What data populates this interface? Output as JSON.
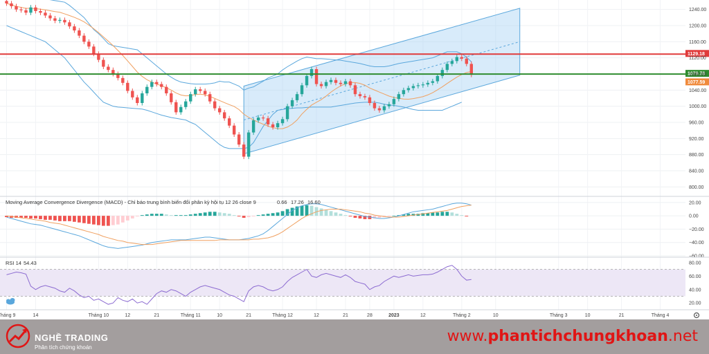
{
  "chart_data": [
    {
      "type": "candlestick",
      "y_ticks": [
        "1240.00",
        "1200.00",
        "1160.00",
        "1120.00",
        "1080.00",
        "1040.00",
        "1000.00",
        "960.00",
        "920.00",
        "880.00",
        "840.00",
        "800.00"
      ],
      "ylim": [
        780,
        1260
      ],
      "x_ticks": [
        {
          "label": "Tháng 9",
          "i": 0
        },
        {
          "label": "14",
          "i": 6
        },
        {
          "label": "Tháng 10",
          "i": 19
        },
        {
          "label": "12",
          "i": 25
        },
        {
          "label": "21",
          "i": 31
        },
        {
          "label": "Tháng 11",
          "i": 38
        },
        {
          "label": "10",
          "i": 44
        },
        {
          "label": "21",
          "i": 50
        },
        {
          "label": "Tháng 12",
          "i": 57
        },
        {
          "label": "12",
          "i": 64
        },
        {
          "label": "21",
          "i": 70
        },
        {
          "label": "28",
          "i": 75
        },
        {
          "label": "2023",
          "i": 80
        },
        {
          "label": "12",
          "i": 86
        },
        {
          "label": "Tháng 2",
          "i": 94
        },
        {
          "label": "10",
          "i": 101
        },
        {
          "label": "Tháng 3",
          "i": 114
        },
        {
          "label": "10",
          "i": 120
        },
        {
          "label": "21",
          "i": 127
        },
        {
          "label": "Tháng 4",
          "i": 135
        }
      ],
      "price_lines": [
        {
          "value": 1129.18,
          "label": "1129.18",
          "color": "#e03a3a"
        },
        {
          "value": 1079.78,
          "label": "1079.78",
          "color": "#2e8b2e"
        },
        {
          "value": 1077.59,
          "label": "1077.59",
          "color": "#f08a3c"
        }
      ],
      "close": [
        1255,
        1248,
        1240,
        1238,
        1232,
        1245,
        1236,
        1232,
        1225,
        1218,
        1212,
        1214,
        1208,
        1198,
        1188,
        1175,
        1160,
        1148,
        1130,
        1115,
        1098,
        1090,
        1080,
        1070,
        1058,
        1038,
        1022,
        1008,
        1032,
        1048,
        1060,
        1055,
        1048,
        1032,
        1010,
        985,
        998,
        1012,
        1030,
        1042,
        1038,
        1030,
        1012,
        995,
        985,
        970,
        952,
        930,
        905,
        875,
        935,
        965,
        972,
        970,
        955,
        948,
        958,
        968,
        1000,
        1015,
        1030,
        1052,
        1075,
        1092,
        1055,
        1050,
        1060,
        1065,
        1058,
        1055,
        1062,
        1052,
        1030,
        1025,
        1022,
        1008,
        995,
        990,
        1000,
        1005,
        1018,
        1030,
        1040,
        1045,
        1050,
        1052,
        1054,
        1058,
        1062,
        1075,
        1090,
        1105,
        1112,
        1122,
        1118,
        1105,
        1078
      ],
      "upper_band": [
        1300,
        1295,
        1290,
        1285,
        1280,
        1275,
        1270,
        1268,
        1266,
        1264,
        1262,
        1260,
        1258,
        1250,
        1240,
        1230,
        1220,
        1205,
        1190,
        1180,
        1168,
        1155,
        1150,
        1148,
        1146,
        1144,
        1142,
        1140,
        1130,
        1120,
        1110,
        1100,
        1090,
        1080,
        1072,
        1065,
        1060,
        1058,
        1056,
        1055,
        1055,
        1055,
        1056,
        1058,
        1062,
        1060,
        1060,
        1055,
        1050,
        1040,
        1045,
        1048,
        1055,
        1062,
        1070,
        1075,
        1080,
        1090,
        1098,
        1105,
        1112,
        1118,
        1122,
        1120,
        1118,
        1118,
        1117,
        1116,
        1115,
        1114,
        1112,
        1110,
        1108,
        1106,
        1103,
        1100,
        1098,
        1098,
        1098,
        1100,
        1103,
        1106,
        1108,
        1110,
        1112,
        1114,
        1116,
        1118,
        1120,
        1125,
        1130,
        1135,
        1135,
        1135,
        1130,
        1122,
        1110
      ],
      "lower_band": [
        1200,
        1195,
        1190,
        1185,
        1180,
        1175,
        1170,
        1165,
        1160,
        1150,
        1140,
        1130,
        1120,
        1105,
        1090,
        1075,
        1060,
        1048,
        1035,
        1022,
        1010,
        1005,
        1000,
        998,
        997,
        996,
        995,
        994,
        993,
        990,
        986,
        982,
        978,
        975,
        972,
        970,
        968,
        966,
        960,
        955,
        945,
        935,
        925,
        915,
        905,
        898,
        895,
        895,
        895,
        895,
        898,
        910,
        930,
        950,
        965,
        980,
        990,
        992,
        994,
        995,
        996,
        996,
        997,
        998,
        998,
        998,
        998,
        998,
        1000,
        1002,
        1004,
        1006,
        1008,
        1009,
        1010,
        1010,
        1010,
        1008,
        1005,
        1003,
        1002,
        1000,
        998,
        995,
        992,
        990,
        990,
        990,
        990,
        990,
        990,
        995,
        1000,
        1005,
        1010
      ]
    },
    {
      "type": "macd",
      "y_ticks": [
        "20.00",
        "0.00",
        "−20.00",
        "−40.00",
        "−60.00"
      ],
      "ylim": [
        -60,
        25
      ],
      "histogram": [
        -2,
        -3,
        -3,
        -3,
        -3,
        -4,
        -4,
        -5,
        -6,
        -6,
        -7,
        -8,
        -8,
        -8,
        -9,
        -10,
        -11,
        -12,
        -13,
        -14,
        -15,
        -15,
        -14,
        -13,
        -10,
        -7,
        -4,
        -1,
        1,
        2,
        3,
        3,
        3,
        2,
        1,
        1,
        1,
        1,
        2,
        3,
        4,
        5,
        6,
        6,
        5,
        4,
        3,
        1,
        -1,
        -3,
        -2,
        -1,
        1,
        2,
        3,
        4,
        5,
        7,
        10,
        12,
        14,
        15,
        16,
        15,
        13,
        11,
        9,
        7,
        5,
        3,
        1,
        -1,
        -3,
        -4,
        -5,
        -5,
        -4,
        -3,
        -2,
        -1,
        0,
        1,
        2,
        3,
        3,
        3,
        4,
        4,
        5,
        5,
        6,
        6,
        5,
        3,
        1,
        -1
      ],
      "macd_line": [
        -2,
        -4,
        -6,
        -8,
        -10,
        -12,
        -13,
        -14,
        -16,
        -18,
        -20,
        -22,
        -24,
        -26,
        -28,
        -30,
        -33,
        -36,
        -39,
        -42,
        -45,
        -47,
        -48,
        -49,
        -48,
        -47,
        -46,
        -45,
        -44,
        -42,
        -40,
        -39,
        -38,
        -37,
        -36,
        -36,
        -36,
        -36,
        -35,
        -34,
        -33,
        -32,
        -32,
        -33,
        -34,
        -35,
        -36,
        -36,
        -36,
        -35,
        -34,
        -32,
        -30,
        -27,
        -22,
        -16,
        -10,
        -4,
        2,
        8,
        12,
        15,
        17,
        18,
        18,
        17,
        15,
        13,
        11,
        9,
        7,
        5,
        3,
        1,
        -1,
        -2,
        -3,
        -4,
        -4,
        -3,
        -2,
        0,
        2,
        4,
        6,
        7,
        8,
        9,
        10,
        12,
        14,
        16,
        18,
        19,
        19,
        18,
        16
      ],
      "signal_line": [
        0,
        -1,
        -2,
        -3,
        -4,
        -5,
        -6,
        -7,
        -8,
        -10,
        -11,
        -12,
        -14,
        -16,
        -18,
        -20,
        -22,
        -24,
        -26,
        -28,
        -31,
        -33,
        -35,
        -37,
        -38,
        -40,
        -41,
        -42,
        -43,
        -43,
        -43,
        -42,
        -41,
        -40,
        -39,
        -38,
        -37,
        -37,
        -37,
        -37,
        -37,
        -37,
        -37,
        -37,
        -36,
        -36,
        -36,
        -36,
        -36,
        -36,
        -36,
        -35,
        -35,
        -34,
        -33,
        -31,
        -28,
        -24,
        -19,
        -14,
        -9,
        -4,
        0,
        3,
        6,
        8,
        9,
        10,
        10,
        10,
        9,
        8,
        7,
        6,
        4,
        3,
        1,
        0,
        -1,
        -2,
        -2,
        -2,
        -1,
        0,
        1,
        2,
        3,
        4,
        5,
        6,
        7,
        8,
        10,
        12,
        14,
        15,
        16
      ],
      "label_values": [
        "0.66",
        "17.26",
        "16.60"
      ]
    },
    {
      "type": "rsi",
      "y_ticks": [
        "80.00",
        "60.00",
        "40.00",
        "20.00"
      ],
      "ylim": [
        12,
        84
      ],
      "overbought": 70,
      "oversold": 30,
      "values": [
        62,
        64,
        66,
        65,
        63,
        45,
        40,
        44,
        46,
        44,
        42,
        38,
        36,
        42,
        38,
        32,
        28,
        30,
        24,
        26,
        22,
        18,
        20,
        28,
        24,
        22,
        26,
        20,
        22,
        18,
        26,
        34,
        38,
        36,
        40,
        38,
        34,
        30,
        36,
        40,
        44,
        46,
        44,
        42,
        40,
        36,
        32,
        30,
        26,
        22,
        38,
        44,
        46,
        44,
        40,
        38,
        40,
        44,
        52,
        58,
        62,
        66,
        70,
        60,
        58,
        62,
        64,
        62,
        60,
        58,
        62,
        58,
        52,
        50,
        48,
        40,
        44,
        46,
        52,
        56,
        60,
        58,
        60,
        62,
        60,
        61,
        62,
        62,
        63,
        66,
        70,
        74,
        76,
        70,
        60,
        54,
        55
      ],
      "label_value": "54.43"
    }
  ],
  "macd_label": "Moving Average Convergence Divergence (MACD) - Chỉ báo trung bình biến đổi phân kỳ hội tụ 12 26 close 9",
  "rsi_label": "RSI 14",
  "footer": {
    "brand": "NGHỀ TRADING",
    "tagline": "Phân tích chứng khoán",
    "url_prefix": "www.",
    "url_main": "phantichchungkhoan",
    "url_suffix": ".net"
  },
  "colors": {
    "up": "#26a69a",
    "down": "#ef5350",
    "band": "#5aa7dc",
    "ma": "#f0a060",
    "channel": "#a9d3f5",
    "rsi": "#8c6bd1",
    "footer": "#a39e9e",
    "url": "#e01515"
  }
}
